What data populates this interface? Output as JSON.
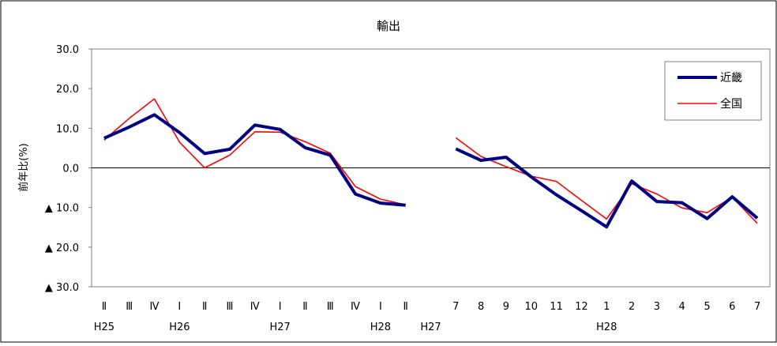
{
  "chart_data": {
    "type": "line",
    "title": "輸出",
    "ylabel": "前年比(%)",
    "ylim": [
      -30,
      30
    ],
    "yticks": [
      {
        "value": 30,
        "label": "30.0"
      },
      {
        "value": 20,
        "label": "20.0"
      },
      {
        "value": 10,
        "label": "10.0"
      },
      {
        "value": 0,
        "label": "0.0"
      },
      {
        "value": -10,
        "label": "▲ 10.0"
      },
      {
        "value": -20,
        "label": "▲ 20.0"
      },
      {
        "value": -30,
        "label": "▲ 30.0"
      }
    ],
    "categories": [
      "Ⅱ",
      "Ⅲ",
      "Ⅳ",
      "Ⅰ",
      "Ⅱ",
      "Ⅲ",
      "Ⅳ",
      "Ⅰ",
      "Ⅱ",
      "Ⅲ",
      "Ⅳ",
      "Ⅰ",
      "Ⅱ",
      "",
      "7",
      "8",
      "9",
      "10",
      "11",
      "12",
      "1",
      "2",
      "3",
      "4",
      "5",
      "6",
      "7"
    ],
    "year_labels": [
      {
        "index": 0,
        "label": "H25"
      },
      {
        "index": 3,
        "label": "H26"
      },
      {
        "index": 7,
        "label": "H27"
      },
      {
        "index": 11,
        "label": "H28"
      },
      {
        "index": 13,
        "label": "H27"
      },
      {
        "index": 20,
        "label": "H28"
      }
    ],
    "series": [
      {
        "name": "近畿",
        "color": "#000080",
        "values": [
          7.5,
          10.3,
          13.4,
          8.9,
          3.6,
          4.7,
          10.8,
          9.7,
          5.1,
          3.2,
          -6.6,
          -8.9,
          -9.4,
          null,
          4.8,
          1.9,
          2.7,
          -2.3,
          -6.8,
          -10.8,
          -14.9,
          -3.3,
          -8.5,
          -8.8,
          -12.8,
          -7.3,
          -12.7
        ]
      },
      {
        "name": "全国",
        "color": "#ff0000",
        "values": [
          7.0,
          12.5,
          17.4,
          6.5,
          0.0,
          3.2,
          9.1,
          9.0,
          6.6,
          3.7,
          -4.7,
          -7.9,
          -9.3,
          null,
          7.6,
          2.9,
          0.3,
          -2.1,
          -3.4,
          -8.2,
          -12.9,
          -4.0,
          -6.6,
          -10.1,
          -11.3,
          -7.4,
          -14.0
        ]
      }
    ],
    "grid": false,
    "legend_position": "top-right"
  }
}
